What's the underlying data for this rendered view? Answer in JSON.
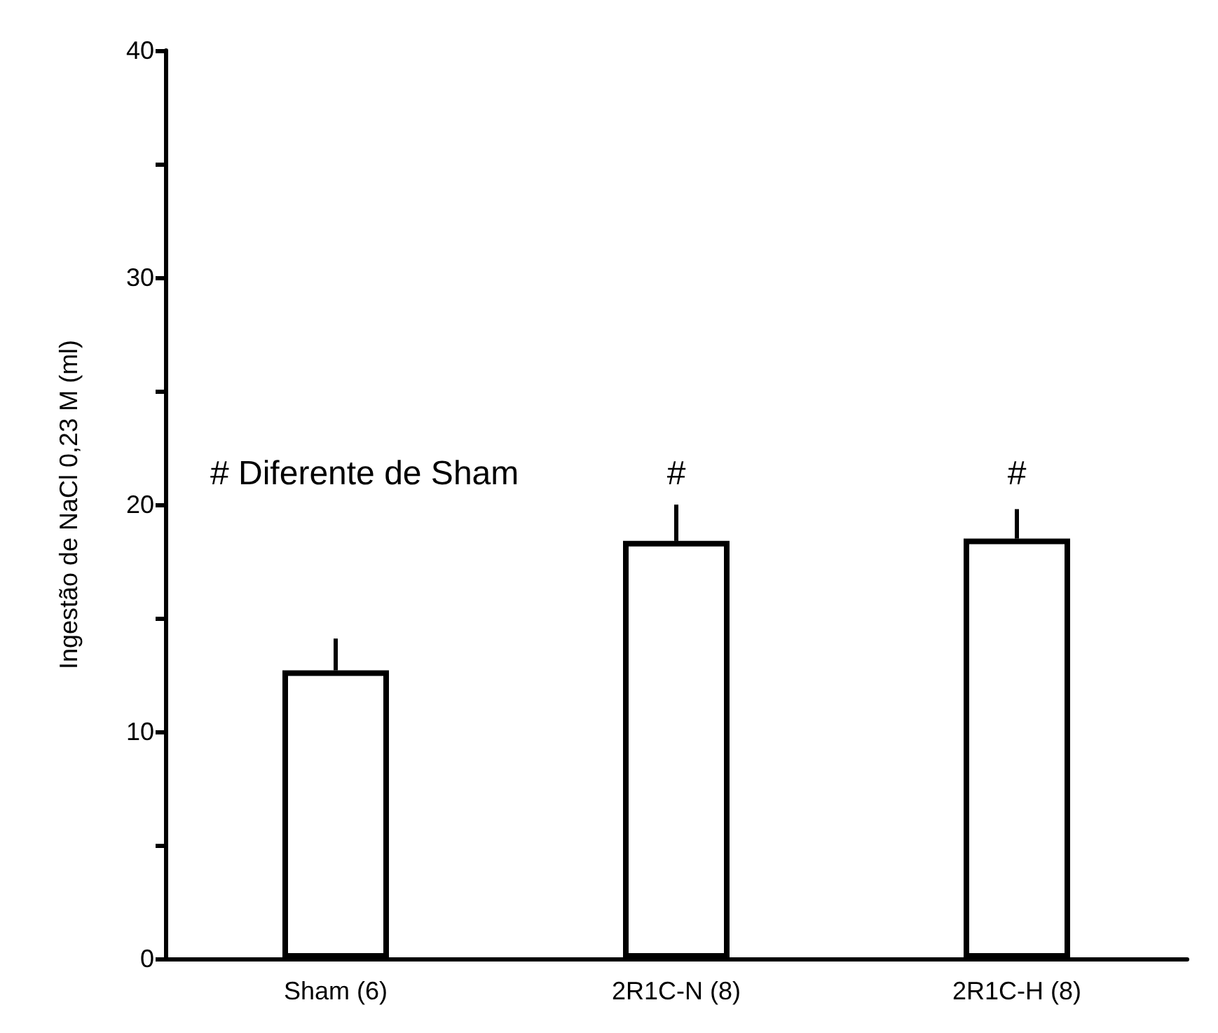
{
  "chart_data": {
    "type": "bar",
    "ylabel": "Ingestão de NaCl 0,23 M (ml)",
    "categories": [
      "Sham (6)",
      "2R1C-N (8)",
      "2R1C-H (8)"
    ],
    "values": [
      12.7,
      18.4,
      18.5
    ],
    "color": "#ffffff",
    "errors": [
      [
        12.7,
        14.1
      ],
      [
        18.4,
        20.0
      ],
      [
        18.5,
        19.8
      ]
    ],
    "ylim": [
      0,
      40
    ],
    "yticks": [
      0,
      {
        "value": 5,
        "label": null
      },
      10,
      {
        "value": 15,
        "label": null
      },
      20,
      {
        "value": 25,
        "label": null
      },
      30,
      {
        "value": 35,
        "label": null
      },
      40
    ],
    "annotations": [
      "# Diferente de Sham",
      "#",
      "#"
    ]
  }
}
